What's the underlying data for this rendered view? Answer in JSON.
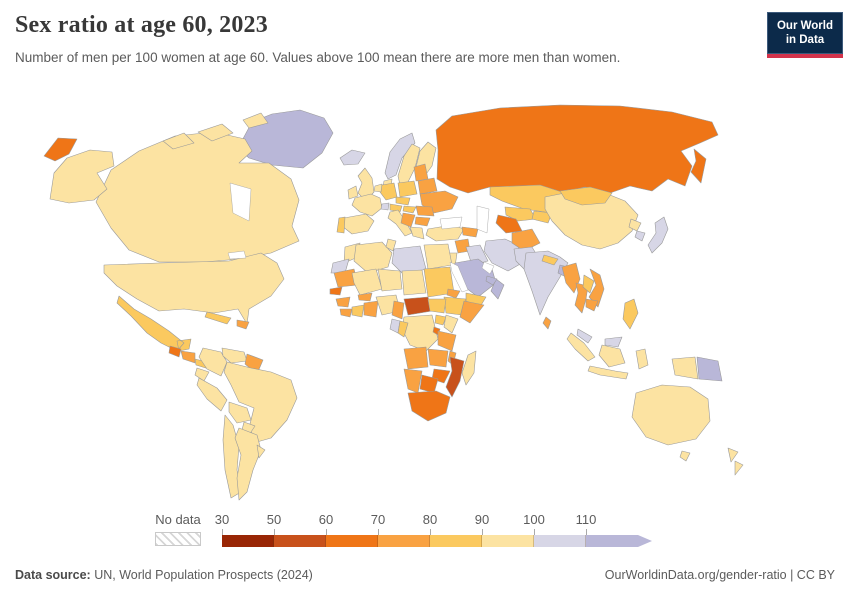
{
  "header": {
    "title": "Sex ratio at age 60, 2023",
    "subtitle": "Number of men per 100 women at age 60. Values above 100 mean there are more men than women.",
    "logo_line1": "Our World",
    "logo_line2": "in Data"
  },
  "legend": {
    "no_data_label": "No data",
    "ticks": [
      "30",
      "50",
      "60",
      "70",
      "80",
      "90",
      "100",
      "110"
    ],
    "buckets": [
      {
        "range": "30-50",
        "color": "#992605"
      },
      {
        "range": "50-60",
        "color": "#c8511b"
      },
      {
        "range": "60-70",
        "color": "#ef7517"
      },
      {
        "range": "70-80",
        "color": "#f9a242"
      },
      {
        "range": "80-90",
        "color": "#fbc95f"
      },
      {
        "range": "90-100",
        "color": "#fce3a2"
      },
      {
        "range": "100-110",
        "color": "#d7d6e6"
      },
      {
        "range": "110+",
        "color": "#b9b7d8"
      }
    ]
  },
  "footer": {
    "source_label": "Data source:",
    "source_text": "UN, World Population Prospects (2024)",
    "right_text": "OurWorldinData.org/gender-ratio | CC BY"
  },
  "map_data": {
    "type": "choropleth",
    "metric": "Number of men per 100 women at age 60",
    "year": "2023",
    "regions": [
      {
        "id": "greenland",
        "bucket": "110+"
      },
      {
        "id": "canada",
        "bucket": "90-100"
      },
      {
        "id": "arctic-islands-1",
        "bucket": "90-100"
      },
      {
        "id": "arctic-islands-2",
        "bucket": "90-100"
      },
      {
        "id": "arctic-islands-3",
        "bucket": "90-100"
      },
      {
        "id": "alaska",
        "bucket": "90-100"
      },
      {
        "id": "chukotka-russia",
        "bucket": "60-70"
      },
      {
        "id": "usa",
        "bucket": "90-100"
      },
      {
        "id": "mexico",
        "bucket": "80-90"
      },
      {
        "id": "guatemala",
        "bucket": "60-70"
      },
      {
        "id": "honduras-nicaragua",
        "bucket": "70-80"
      },
      {
        "id": "costa-rica-panama",
        "bucket": "80-90"
      },
      {
        "id": "cuba",
        "bucket": "80-90"
      },
      {
        "id": "hispaniola",
        "bucket": "70-80"
      },
      {
        "id": "colombia",
        "bucket": "90-100"
      },
      {
        "id": "venezuela",
        "bucket": "90-100"
      },
      {
        "id": "guyana-suriname",
        "bucket": "70-80"
      },
      {
        "id": "ecuador",
        "bucket": "90-100"
      },
      {
        "id": "peru",
        "bucket": "90-100"
      },
      {
        "id": "brazil",
        "bucket": "90-100"
      },
      {
        "id": "bolivia",
        "bucket": "90-100"
      },
      {
        "id": "paraguay",
        "bucket": "90-100"
      },
      {
        "id": "chile",
        "bucket": "90-100"
      },
      {
        "id": "argentina",
        "bucket": "90-100"
      },
      {
        "id": "uruguay",
        "bucket": "90-100"
      },
      {
        "id": "iceland",
        "bucket": "100-110"
      },
      {
        "id": "uk",
        "bucket": "90-100"
      },
      {
        "id": "ireland",
        "bucket": "90-100"
      },
      {
        "id": "norway",
        "bucket": "100-110"
      },
      {
        "id": "sweden",
        "bucket": "90-100"
      },
      {
        "id": "finland",
        "bucket": "90-100"
      },
      {
        "id": "denmark",
        "bucket": "90-100"
      },
      {
        "id": "france",
        "bucket": "90-100"
      },
      {
        "id": "spain",
        "bucket": "90-100"
      },
      {
        "id": "portugal",
        "bucket": "80-90"
      },
      {
        "id": "germany",
        "bucket": "80-90"
      },
      {
        "id": "benelux",
        "bucket": "90-100"
      },
      {
        "id": "switzerland",
        "bucket": "100-110"
      },
      {
        "id": "austria",
        "bucket": "80-90"
      },
      {
        "id": "czech-slovakia",
        "bucket": "80-90"
      },
      {
        "id": "poland",
        "bucket": "80-90"
      },
      {
        "id": "italy",
        "bucket": "90-100"
      },
      {
        "id": "baltics",
        "bucket": "70-80"
      },
      {
        "id": "belarus",
        "bucket": "70-80"
      },
      {
        "id": "ukraine",
        "bucket": "70-80"
      },
      {
        "id": "hungary",
        "bucket": "80-90"
      },
      {
        "id": "romania",
        "bucket": "70-80"
      },
      {
        "id": "balkans",
        "bucket": "70-80"
      },
      {
        "id": "bulgaria",
        "bucket": "70-80"
      },
      {
        "id": "greece",
        "bucket": "90-100"
      },
      {
        "id": "russia",
        "bucket": "60-70"
      },
      {
        "id": "kamchatka-russia",
        "bucket": "60-70"
      },
      {
        "id": "turkey",
        "bucket": "90-100"
      },
      {
        "id": "caucasus",
        "bucket": "70-80"
      },
      {
        "id": "syria",
        "bucket": "70-80"
      },
      {
        "id": "israel-jordan",
        "bucket": "90-100"
      },
      {
        "id": "iraq",
        "bucket": "100-110"
      },
      {
        "id": "iran",
        "bucket": "100-110"
      },
      {
        "id": "saudi-arabia",
        "bucket": "110+"
      },
      {
        "id": "yemen",
        "bucket": "80-90"
      },
      {
        "id": "oman",
        "bucket": "110+"
      },
      {
        "id": "uae",
        "bucket": "110+"
      },
      {
        "id": "kazakhstan",
        "bucket": "80-90"
      },
      {
        "id": "uzbekistan",
        "bucket": "80-90"
      },
      {
        "id": "turkmenistan",
        "bucket": "60-70"
      },
      {
        "id": "kyrgyzstan-tajikistan",
        "bucket": "80-90"
      },
      {
        "id": "afghanistan",
        "bucket": "70-80"
      },
      {
        "id": "pakistan",
        "bucket": "100-110"
      },
      {
        "id": "india",
        "bucket": "100-110"
      },
      {
        "id": "nepal",
        "bucket": "80-90"
      },
      {
        "id": "bangladesh",
        "bucket": "110+"
      },
      {
        "id": "sri-lanka",
        "bucket": "70-80"
      },
      {
        "id": "china",
        "bucket": "90-100"
      },
      {
        "id": "mongolia",
        "bucket": "80-90"
      },
      {
        "id": "north-korea",
        "bucket": "90-100"
      },
      {
        "id": "south-korea",
        "bucket": "100-110"
      },
      {
        "id": "japan",
        "bucket": "100-110"
      },
      {
        "id": "myanmar",
        "bucket": "70-80"
      },
      {
        "id": "thailand",
        "bucket": "70-80"
      },
      {
        "id": "laos",
        "bucket": "80-90"
      },
      {
        "id": "vietnam",
        "bucket": "70-80"
      },
      {
        "id": "cambodia",
        "bucket": "70-80"
      },
      {
        "id": "malaysia",
        "bucket": "100-110"
      },
      {
        "id": "malaysia-borneo",
        "bucket": "100-110"
      },
      {
        "id": "sumatra-indonesia",
        "bucket": "90-100"
      },
      {
        "id": "java-indonesia",
        "bucket": "90-100"
      },
      {
        "id": "kalimantan-indonesia",
        "bucket": "90-100"
      },
      {
        "id": "sulawesi-indonesia",
        "bucket": "90-100"
      },
      {
        "id": "west-new-guinea-indonesia",
        "bucket": "90-100"
      },
      {
        "id": "papua-new-guinea",
        "bucket": "110+"
      },
      {
        "id": "philippines",
        "bucket": "80-90"
      },
      {
        "id": "morocco",
        "bucket": "90-100"
      },
      {
        "id": "western-sahara",
        "bucket": "100-110"
      },
      {
        "id": "algeria",
        "bucket": "90-100"
      },
      {
        "id": "tunisia",
        "bucket": "90-100"
      },
      {
        "id": "libya",
        "bucket": "100-110"
      },
      {
        "id": "egypt",
        "bucket": "90-100"
      },
      {
        "id": "mauritania",
        "bucket": "70-80"
      },
      {
        "id": "senegal",
        "bucket": "60-70"
      },
      {
        "id": "guinea",
        "bucket": "70-80"
      },
      {
        "id": "sierra-leone-liberia",
        "bucket": "70-80"
      },
      {
        "id": "mali",
        "bucket": "90-100"
      },
      {
        "id": "burkina-faso",
        "bucket": "70-80"
      },
      {
        "id": "cote-divoire",
        "bucket": "80-90"
      },
      {
        "id": "ghana-togo-benin",
        "bucket": "70-80"
      },
      {
        "id": "niger",
        "bucket": "90-100"
      },
      {
        "id": "nigeria",
        "bucket": "90-100"
      },
      {
        "id": "chad",
        "bucket": "90-100"
      },
      {
        "id": "sudan",
        "bucket": "80-90"
      },
      {
        "id": "eritrea",
        "bucket": "70-80"
      },
      {
        "id": "ethiopia",
        "bucket": "80-90"
      },
      {
        "id": "somalia",
        "bucket": "70-80"
      },
      {
        "id": "cameroon",
        "bucket": "70-80"
      },
      {
        "id": "central-african-republic",
        "bucket": "50-60"
      },
      {
        "id": "south-sudan",
        "bucket": "80-90"
      },
      {
        "id": "drc",
        "bucket": "90-100"
      },
      {
        "id": "gabon",
        "bucket": "100-110"
      },
      {
        "id": "congo",
        "bucket": "80-90"
      },
      {
        "id": "uganda",
        "bucket": "80-90"
      },
      {
        "id": "kenya",
        "bucket": "90-100"
      },
      {
        "id": "rwanda-burundi",
        "bucket": "60-70"
      },
      {
        "id": "tanzania",
        "bucket": "70-80"
      },
      {
        "id": "angola",
        "bucket": "70-80"
      },
      {
        "id": "zambia",
        "bucket": "70-80"
      },
      {
        "id": "malawi",
        "bucket": "70-80"
      },
      {
        "id": "mozambique",
        "bucket": "50-60"
      },
      {
        "id": "zimbabwe",
        "bucket": "60-70"
      },
      {
        "id": "botswana",
        "bucket": "60-70"
      },
      {
        "id": "namibia",
        "bucket": "70-80"
      },
      {
        "id": "south-africa",
        "bucket": "60-70"
      },
      {
        "id": "madagascar",
        "bucket": "90-100"
      },
      {
        "id": "australia",
        "bucket": "90-100"
      },
      {
        "id": "tasmania",
        "bucket": "90-100"
      },
      {
        "id": "new-zealand-north",
        "bucket": "90-100"
      },
      {
        "id": "new-zealand-south",
        "bucket": "90-100"
      }
    ]
  }
}
